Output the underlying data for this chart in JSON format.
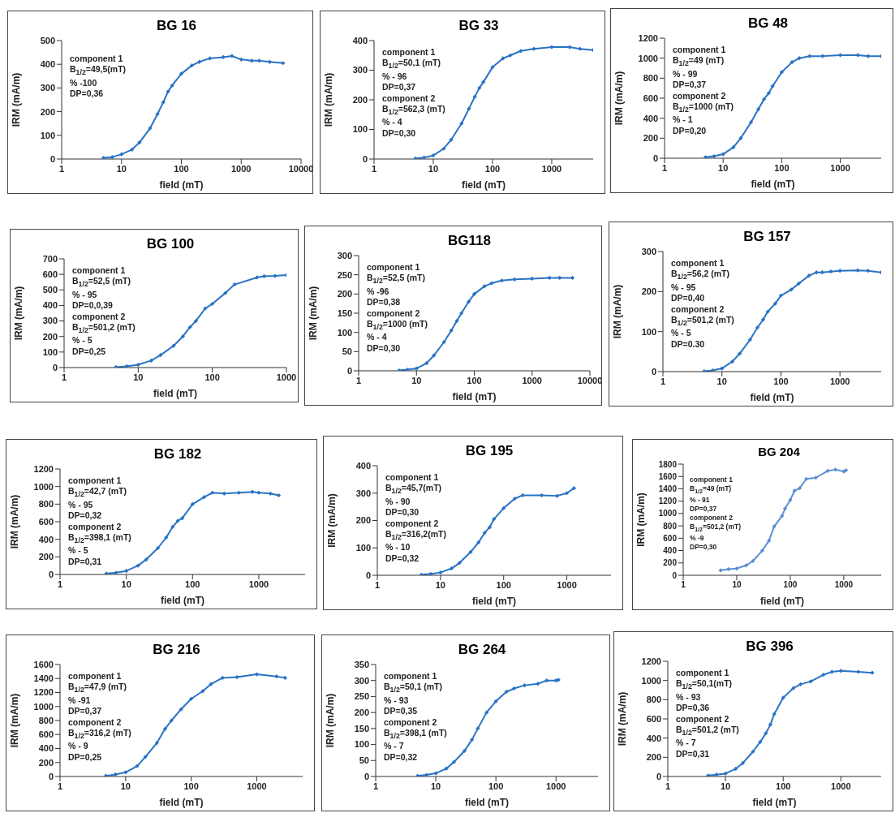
{
  "chart_data": [
    {
      "type": "line",
      "title": "BG 16",
      "xlabel": "field (mT)",
      "ylabel": "IRM (mA/m)",
      "log": "x",
      "marker": "diamond",
      "xlim": [
        1,
        10000
      ],
      "xticks": [
        1,
        10,
        100,
        1000,
        10000
      ],
      "ylim": [
        0,
        500
      ],
      "yticks": [
        0,
        100,
        200,
        300,
        400,
        500
      ],
      "annotations": [
        "component 1",
        "B$_{1/2}$=49,5(mT)",
        "% -100",
        "DP=0,36"
      ],
      "x": [
        5,
        7,
        10,
        15,
        20,
        30,
        40,
        50,
        60,
        70,
        100,
        150,
        200,
        300,
        500,
        700,
        1000,
        1500,
        2000,
        3000,
        5000
      ],
      "series": [
        {
          "color": "#2a73c4",
          "values": [
            5,
            8,
            20,
            40,
            70,
            130,
            190,
            240,
            285,
            310,
            360,
            395,
            410,
            425,
            430,
            435,
            420,
            415,
            415,
            410,
            405
          ]
        }
      ]
    },
    {
      "type": "line",
      "title": "BG 33",
      "xlabel": "field (mT)",
      "ylabel": "IRM (mA/m)",
      "log": "x",
      "marker": "diamond",
      "xlim": [
        1,
        5000
      ],
      "xticks": [
        1,
        10,
        100,
        1000
      ],
      "ylim": [
        0,
        400
      ],
      "yticks": [
        0,
        100,
        200,
        300,
        400
      ],
      "annotations": [
        "component 1",
        "B$_{1/2}$=50,1 (mT)",
        "% - 96",
        "DP=0,37",
        "component 2",
        "B$_{1/2}$=562,3 (mT)",
        "% - 4",
        "DP=0,30"
      ],
      "x": [
        5,
        7,
        10,
        15,
        20,
        30,
        40,
        50,
        60,
        70,
        100,
        150,
        200,
        300,
        500,
        1000,
        2000,
        3000,
        5000
      ],
      "series": [
        {
          "color": "#2a73c4",
          "values": [
            2,
            5,
            12,
            35,
            65,
            120,
            170,
            210,
            240,
            260,
            310,
            340,
            350,
            365,
            372,
            378,
            378,
            372,
            368
          ]
        }
      ]
    },
    {
      "type": "line",
      "title": "BG 48",
      "xlabel": "field (mT)",
      "ylabel": "IRM (mA/m)",
      "log": "x",
      "marker": "diamond",
      "xlim": [
        1,
        5000
      ],
      "xticks": [
        1,
        10,
        100,
        1000
      ],
      "ylim": [
        0,
        1200
      ],
      "yticks": [
        0,
        200,
        400,
        600,
        800,
        1000,
        1200
      ],
      "annotations": [
        "component 1",
        "B$_{1/2}$=49 (mT)",
        "% - 99",
        "DP=0,37",
        "component 2",
        "B$_{1/2}$=1000 (mT)",
        "% - 1",
        "DP=0,20"
      ],
      "x": [
        5,
        7,
        10,
        15,
        20,
        30,
        40,
        50,
        60,
        70,
        100,
        150,
        200,
        300,
        500,
        1000,
        2000,
        3000,
        5000
      ],
      "series": [
        {
          "color": "#2a73c4",
          "values": [
            10,
            20,
            40,
            110,
            200,
            360,
            490,
            590,
            650,
            720,
            860,
            960,
            1000,
            1020,
            1020,
            1030,
            1030,
            1020,
            1020
          ]
        }
      ]
    },
    {
      "type": "line",
      "title": "BG 100",
      "xlabel": "field (mT)",
      "ylabel": "IRM (mA/m)",
      "log": "x",
      "marker": "diamond",
      "xlim": [
        1,
        1000
      ],
      "xticks": [
        1,
        10,
        100,
        1000
      ],
      "ylim": [
        0,
        700
      ],
      "yticks": [
        0,
        100,
        200,
        300,
        400,
        500,
        600,
        700
      ],
      "annotations": [
        "component 1",
        "B$_{1/2}$=52,5 (mT)",
        "% - 95",
        "DP=0,0,39",
        "component 2",
        "B$_{1/2}$=501,2 (mT)",
        "% - 5",
        "DP=0,25"
      ],
      "x": [
        5,
        7,
        10,
        15,
        20,
        30,
        40,
        50,
        60,
        80,
        100,
        150,
        200,
        400,
        500,
        700,
        1000
      ],
      "series": [
        {
          "color": "#2a73c4",
          "values": [
            3,
            8,
            18,
            45,
            80,
            140,
            200,
            260,
            300,
            380,
            410,
            480,
            535,
            580,
            588,
            590,
            595
          ]
        }
      ]
    },
    {
      "type": "line",
      "title": "BG118",
      "xlabel": "field (mT)",
      "ylabel": "IRM (mA/m)",
      "log": "x",
      "marker": "diamond",
      "xlim": [
        1,
        10000
      ],
      "xticks": [
        1,
        10,
        100,
        1000,
        10000
      ],
      "ylim": [
        0,
        300
      ],
      "yticks": [
        0,
        50,
        100,
        150,
        200,
        250,
        300
      ],
      "annotations": [
        "component 1",
        "B$_{1/2}$=52,5 (mT)",
        "% -96",
        "DP=0,38",
        "component 2",
        "B$_{1/2}$=1000 (mT)",
        "% - 4",
        "DP=0,30"
      ],
      "x": [
        5,
        7,
        10,
        15,
        20,
        30,
        40,
        50,
        60,
        80,
        100,
        150,
        200,
        300,
        500,
        1000,
        2000,
        3000,
        5000
      ],
      "series": [
        {
          "color": "#2a73c4",
          "values": [
            1,
            3,
            6,
            20,
            40,
            75,
            105,
            130,
            150,
            180,
            200,
            220,
            228,
            235,
            238,
            240,
            242,
            242,
            242
          ]
        }
      ]
    },
    {
      "type": "line",
      "title": "BG 157",
      "xlabel": "field (mT)",
      "ylabel": "IRM (mA/m)",
      "log": "x",
      "marker": "diamond",
      "xlim": [
        1,
        5000
      ],
      "xticks": [
        1,
        10,
        100,
        1000
      ],
      "ylim": [
        0,
        300
      ],
      "yticks": [
        0,
        100,
        200,
        300
      ],
      "annotations": [
        "component 1",
        "B$_{1/2}$=56,2 (mT)",
        "% - 95",
        "DP=0,40",
        "component 2",
        "B$_{1/2}$=501,2 (mT)",
        "% - 5",
        "DP=0.30"
      ],
      "x": [
        5,
        7,
        10,
        15,
        20,
        30,
        40,
        50,
        60,
        80,
        100,
        150,
        200,
        300,
        400,
        500,
        700,
        1000,
        2000,
        3000,
        5000
      ],
      "series": [
        {
          "color": "#2a73c4",
          "values": [
            1,
            3,
            8,
            25,
            45,
            80,
            110,
            130,
            150,
            170,
            190,
            205,
            220,
            240,
            248,
            248,
            250,
            252,
            253,
            252,
            248
          ]
        }
      ]
    },
    {
      "type": "line",
      "title": "BG 182",
      "xlabel": "field (mT)",
      "ylabel": "IRM (mA/m)",
      "log": "x",
      "marker": "diamond",
      "xlim": [
        1,
        5000
      ],
      "xticks": [
        1,
        10,
        100,
        1000
      ],
      "ylim": [
        0,
        1200
      ],
      "yticks": [
        0,
        200,
        400,
        600,
        800,
        1000,
        1200
      ],
      "annotations": [
        "component 1",
        "B$_{1/2}$=42,7 (mT)",
        "% - 95",
        "DP=0,32",
        "component 2",
        "B$_{1/2}$=398,1 (mT)",
        "% - 5",
        "DP=0,31"
      ],
      "x": [
        5,
        7,
        10,
        15,
        20,
        30,
        40,
        50,
        60,
        70,
        100,
        150,
        200,
        300,
        500,
        800,
        1000,
        1500,
        2000
      ],
      "series": [
        {
          "color": "#2a73c4",
          "values": [
            10,
            20,
            40,
            100,
            170,
            300,
            420,
            540,
            610,
            640,
            800,
            880,
            930,
            920,
            930,
            940,
            930,
            920,
            900
          ]
        }
      ]
    },
    {
      "type": "line",
      "title": "BG 195",
      "xlabel": "field (mT)",
      "ylabel": "IRM (mA/m)",
      "log": "x",
      "marker": "diamond",
      "xlim": [
        1,
        5000
      ],
      "xticks": [
        1,
        10,
        100,
        1000
      ],
      "ylim": [
        0,
        400
      ],
      "yticks": [
        0,
        100,
        200,
        300,
        400
      ],
      "annotations": [
        "component 1",
        "B$_{1/2}$=45,7(mT)",
        "% - 90",
        "DP=0,30",
        "component 2",
        "B$_{1/2}$=316,2(mT)",
        "% - 10",
        "DP=0,32"
      ],
      "x": [
        5,
        7,
        10,
        15,
        20,
        30,
        40,
        50,
        60,
        70,
        100,
        150,
        200,
        400,
        700,
        1000,
        1300
      ],
      "series": [
        {
          "color": "#2a73c4",
          "values": [
            2,
            5,
            10,
            25,
            45,
            85,
            120,
            155,
            175,
            205,
            245,
            280,
            292,
            292,
            290,
            300,
            318
          ]
        }
      ]
    },
    {
      "type": "line",
      "title": "BG 204",
      "xlabel": "field (mT)",
      "ylabel": "IRM (mA/m)",
      "log": "x",
      "marker": "diamond",
      "xlim": [
        1,
        5000
      ],
      "xticks": [
        1,
        10,
        100,
        1000
      ],
      "ylim": [
        0,
        1800
      ],
      "yticks": [
        0,
        200,
        400,
        600,
        800,
        1000,
        1200,
        1400,
        1600,
        1800
      ],
      "annotations": [
        "component 1",
        "B$_{1/2}$=49 (mT)",
        "% - 91",
        "DP=0,37",
        "component 2",
        "B$_{1/2}$=501,2 (mT)",
        "% -9",
        "DP=0,30"
      ],
      "x": [
        5,
        7,
        10,
        15,
        20,
        30,
        40,
        50,
        70,
        80,
        100,
        120,
        150,
        200,
        300,
        500,
        700,
        1000,
        1100
      ],
      "series": [
        {
          "color": "#5b8fd3",
          "values": [
            80,
            100,
            110,
            160,
            230,
            400,
            560,
            790,
            960,
            1080,
            1220,
            1370,
            1410,
            1560,
            1580,
            1690,
            1710,
            1680,
            1700
          ]
        }
      ]
    },
    {
      "type": "line",
      "title": "BG 216",
      "xlabel": "field (mT)",
      "ylabel": "IRM (mA/m)",
      "log": "x",
      "marker": "diamond",
      "xlim": [
        1,
        5000
      ],
      "xticks": [
        1,
        10,
        100,
        1000
      ],
      "ylim": [
        0,
        1600
      ],
      "yticks": [
        0,
        200,
        400,
        600,
        800,
        1000,
        1200,
        1400,
        1600
      ],
      "annotations": [
        "component 1",
        "B$_{1/2}$=47,9 (mT)",
        "% -91",
        "DP=0,37",
        "component 2",
        "B$_{1/2}$=316,2 (mT)",
        "% - 9",
        "DP=0,25"
      ],
      "x": [
        5,
        7,
        10,
        15,
        20,
        30,
        40,
        50,
        70,
        100,
        150,
        200,
        300,
        500,
        1000,
        2000,
        2700
      ],
      "series": [
        {
          "color": "#2a73c4",
          "values": [
            10,
            30,
            60,
            150,
            280,
            480,
            680,
            800,
            960,
            1110,
            1220,
            1320,
            1410,
            1420,
            1460,
            1430,
            1410
          ]
        }
      ]
    },
    {
      "type": "line",
      "title": "BG 264",
      "xlabel": "field (mT)",
      "ylabel": "IRM (mA/m)",
      "log": "x",
      "marker": "diamond",
      "xlim": [
        1,
        5000
      ],
      "xticks": [
        1,
        10,
        100,
        1000
      ],
      "ylim": [
        0,
        350
      ],
      "yticks": [
        0,
        50,
        100,
        150,
        200,
        250,
        300,
        350
      ],
      "annotations": [
        "component 1",
        "B$_{1/2}$=50,1 (mT)",
        "% - 93",
        "DP=0,35",
        "component 2",
        "B$_{1/2}$=398,1 (mT)",
        "% - 7",
        "DP=0,32"
      ],
      "x": [
        5,
        7,
        10,
        15,
        20,
        30,
        40,
        50,
        70,
        100,
        150,
        200,
        300,
        500,
        700,
        1000,
        1100
      ],
      "series": [
        {
          "color": "#2a73c4",
          "values": [
            2,
            5,
            10,
            25,
            45,
            80,
            115,
            150,
            200,
            235,
            265,
            275,
            285,
            290,
            300,
            300,
            302
          ]
        }
      ]
    },
    {
      "type": "line",
      "title": "BG 396",
      "xlabel": "field (mT)",
      "ylabel": "IRM (mA/m)",
      "log": "x",
      "marker": "diamond",
      "xlim": [
        1,
        5000
      ],
      "xticks": [
        1,
        10,
        100,
        1000
      ],
      "ylim": [
        0,
        1200
      ],
      "yticks": [
        0,
        200,
        400,
        600,
        800,
        1000,
        1200
      ],
      "annotations": [
        "component 1",
        "B$_{1/2}$=50,1(mT)",
        "% - 93",
        "DP=0,36",
        "component 2",
        "B$_{1/2}$=501,2 (mT)",
        "% - 7",
        "DP=0,31"
      ],
      "x": [
        5,
        7,
        10,
        15,
        20,
        30,
        40,
        50,
        60,
        70,
        100,
        150,
        200,
        300,
        500,
        700,
        1000,
        2000,
        3500
      ],
      "series": [
        {
          "color": "#2a73c4",
          "values": [
            10,
            20,
            30,
            80,
            140,
            260,
            360,
            450,
            540,
            650,
            820,
            920,
            960,
            990,
            1060,
            1090,
            1100,
            1090,
            1080
          ]
        }
      ]
    }
  ]
}
